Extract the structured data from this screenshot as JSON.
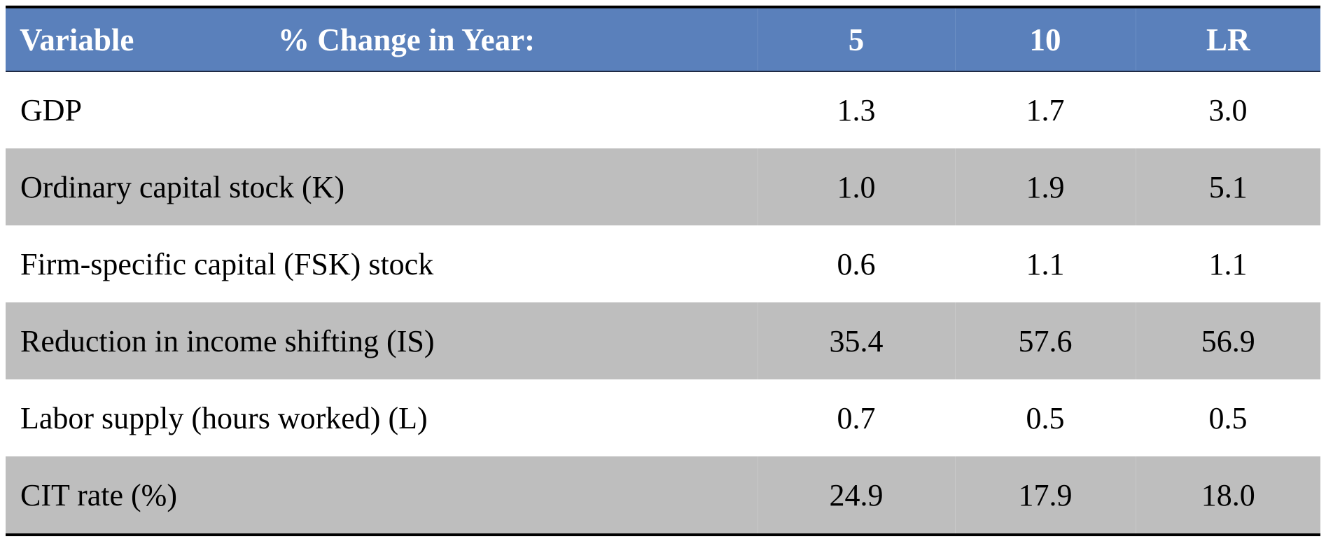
{
  "table": {
    "header": {
      "variable": "Variable",
      "change_in_year": "% Change in Year:",
      "col_5": "5",
      "col_10": "10",
      "col_lr": "LR"
    },
    "rows": [
      {
        "label": "GDP",
        "y5": "1.3",
        "y10": "1.7",
        "lr": "3.0"
      },
      {
        "label": "Ordinary capital stock (K)",
        "y5": "1.0",
        "y10": "1.9",
        "lr": "5.1"
      },
      {
        "label": "Firm-specific capital (FSK) stock",
        "y5": "0.6",
        "y10": "1.1",
        "lr": "1.1"
      },
      {
        "label": "Reduction in income shifting (IS)",
        "y5": "35.4",
        "y10": "57.6",
        "lr": "56.9"
      },
      {
        "label": "Labor supply (hours worked) (L)",
        "y5": "0.7",
        "y10": "0.5",
        "lr": "0.5"
      },
      {
        "label": "CIT rate (%)",
        "y5": "24.9",
        "y10": "17.9",
        "lr": "18.0"
      }
    ]
  },
  "colors": {
    "header_bg": "#5a80bb",
    "header_text": "#ffffff",
    "shaded_row": "#bebebe",
    "rule": "#000000"
  }
}
